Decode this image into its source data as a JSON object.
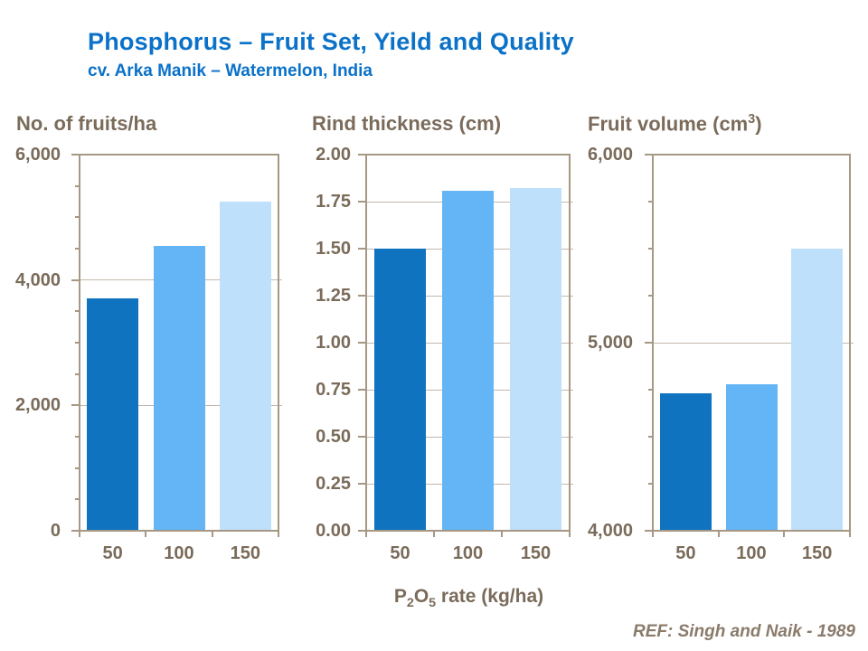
{
  "header": {
    "title": "Phosphorus – Fruit Set, Yield and Quality",
    "subtitle": "cv. Arka Manik – Watermelon, India"
  },
  "footer": {
    "xaxis_label": "P2O5 rate (kg/ha)",
    "xaxis_label_parts": [
      {
        "text": "P"
      },
      {
        "sub": "2"
      },
      {
        "text": "O"
      },
      {
        "sub": "5"
      },
      {
        "text": " rate (kg/ha)"
      }
    ],
    "reference": "REF: Singh and Naik - 1989"
  },
  "colors": {
    "title_blue": "#0b72c8",
    "axis_text": "#7a6b5a",
    "axis_line": "#a69884",
    "gridline": "#c4b8ab",
    "reference_text": "#8a7a6a",
    "bars": [
      "#0f73c0",
      "#63b5f6",
      "#bfe0fa"
    ],
    "background": "#ffffff"
  },
  "chart_data": [
    {
      "type": "bar",
      "title": "No. of fruits/ha",
      "categories": [
        "50",
        "100",
        "150"
      ],
      "values": [
        3700,
        4550,
        5250
      ],
      "ylim": [
        0,
        6000
      ],
      "ytick_step": 2000,
      "minor_tick_step": 500,
      "ytick_values": [
        0,
        2000,
        4000,
        6000
      ],
      "ytick_labels": [
        "0",
        "2,000",
        "4,000",
        "6,000"
      ],
      "grid": true,
      "legend": "none"
    },
    {
      "type": "bar",
      "title": "Rind thickness (cm)",
      "categories": [
        "50",
        "100",
        "150"
      ],
      "values": [
        1.5,
        1.81,
        1.82
      ],
      "ylim": [
        0,
        2
      ],
      "ytick_step": 0.25,
      "minor_tick_step": null,
      "ytick_values": [
        0,
        0.25,
        0.5,
        0.75,
        1,
        1.25,
        1.5,
        1.75,
        2
      ],
      "ytick_labels": [
        "0.00",
        "0.25",
        "0.50",
        "0.75",
        "1.00",
        "1.25",
        "1.50",
        "1.75",
        "2.00"
      ],
      "grid": true,
      "legend": "none"
    },
    {
      "type": "bar",
      "title": "Fruit volume (cm³)",
      "title_parts": [
        {
          "text": "Fruit volume (cm"
        },
        {
          "sup": "3"
        },
        {
          "text": ")"
        }
      ],
      "categories": [
        "50",
        "100",
        "150"
      ],
      "values": [
        4730,
        4780,
        5500
      ],
      "ylim": [
        4000,
        6000
      ],
      "ytick_step": 1000,
      "minor_tick_step": 250,
      "ytick_values": [
        4000,
        5000,
        6000
      ],
      "ytick_labels": [
        "4,000",
        "5,000",
        "6,000"
      ],
      "grid": true,
      "legend": "none"
    }
  ]
}
